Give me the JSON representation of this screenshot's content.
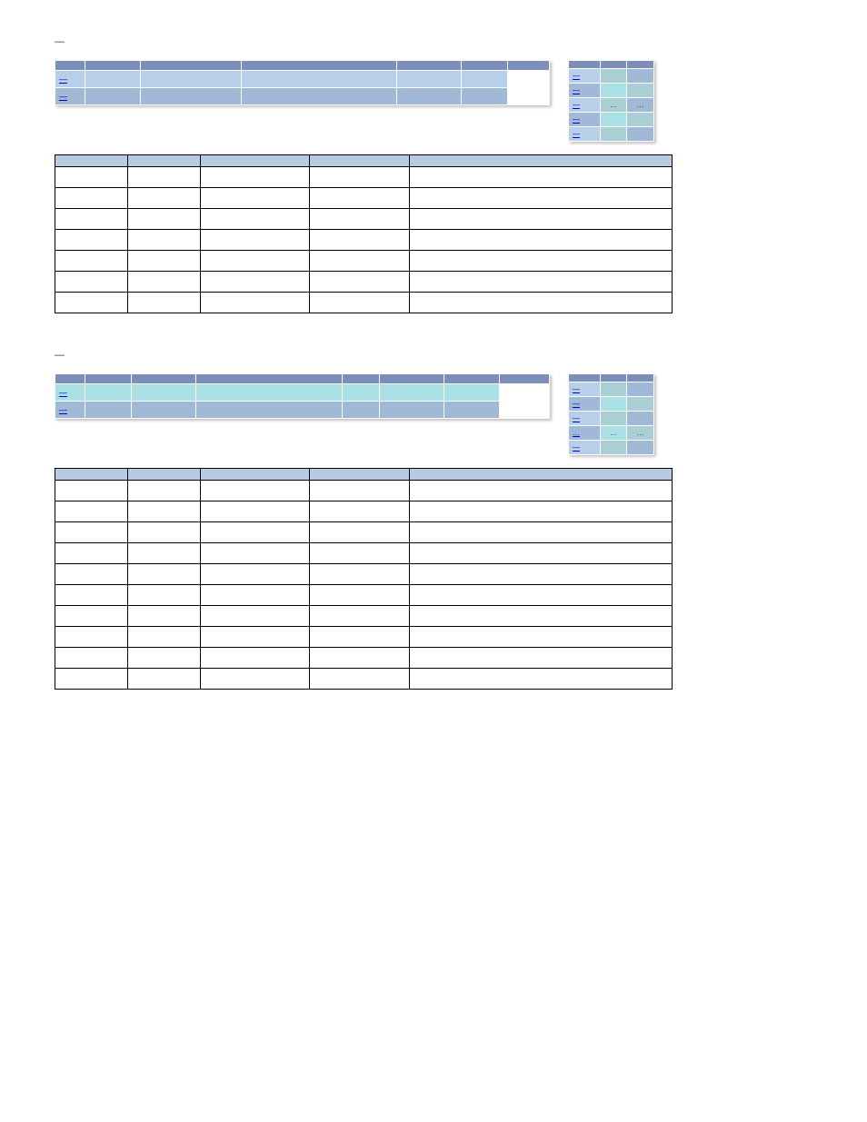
{
  "colors": {
    "header_blue": "#7b8fb9",
    "row_light_blue": "#b7cfe8",
    "row_mid_blue": "#9fb9d6",
    "row_teal": "#a9e0e5",
    "row_teal_dark": "#a9cfd4",
    "detail_header": "#b7cbe0",
    "link": "#0000cc",
    "border": "#000000",
    "shadow": "rgba(0,0,0,0.25)"
  },
  "sections": [
    {
      "title": "—",
      "summary": {
        "columns": [
          "",
          "",
          "",
          "",
          "",
          ""
        ],
        "rows": [
          {
            "cls": "row-a",
            "link": "—",
            "cells": [
              "",
              "",
              "",
              "",
              ""
            ]
          },
          {
            "cls": "row-b",
            "link": "—",
            "cells": [
              "",
              "",
              "",
              "",
              ""
            ]
          }
        ],
        "col_widths": [
          "32px",
          "60px",
          "110px",
          "170px",
          "70px",
          "50px",
          "auto"
        ]
      },
      "mini": {
        "columns": [
          "",
          "",
          ""
        ],
        "rows": [
          {
            "cls": "c1",
            "link": "—",
            "cells": [
              "",
              ""
            ]
          },
          {
            "cls": "c2",
            "link": "—",
            "cells": [
              "",
              ""
            ]
          },
          {
            "cls": "c3",
            "link": "—",
            "cells": [
              "…",
              "…"
            ]
          },
          {
            "cls": "c4",
            "link": "—",
            "cells": [
              "",
              ""
            ]
          },
          {
            "cls": "c5",
            "link": "—",
            "cells": [
              "",
              ""
            ]
          }
        ]
      },
      "detail": {
        "columns": [
          "",
          "",
          "",
          "",
          ""
        ],
        "col_widths": [
          "80px",
          "80px",
          "120px",
          "110px",
          "auto"
        ],
        "row_count": 7
      }
    },
    {
      "title": "—",
      "summary": {
        "columns": [
          "",
          "",
          "",
          "",
          "",
          "",
          ""
        ],
        "rows": [
          {
            "cls": "row-a2",
            "link": "—",
            "cells": [
              "",
              "",
              "",
              "",
              "",
              ""
            ]
          },
          {
            "cls": "row-b2",
            "link": "—",
            "cells": [
              "",
              "",
              "",
              "",
              "",
              ""
            ]
          }
        ],
        "col_widths": [
          "32px",
          "50px",
          "70px",
          "160px",
          "40px",
          "70px",
          "60px",
          "auto"
        ]
      },
      "mini": {
        "columns": [
          "",
          "",
          ""
        ],
        "rows": [
          {
            "cls": "c1",
            "link": "—",
            "cells": [
              "",
              ""
            ]
          },
          {
            "cls": "c2",
            "link": "—",
            "cells": [
              "",
              ""
            ]
          },
          {
            "cls": "c3",
            "link": "—",
            "cells": [
              "",
              ""
            ]
          },
          {
            "cls": "c4",
            "link": "…",
            "cells": [
              "…",
              "…"
            ]
          },
          {
            "cls": "c5",
            "link": "—",
            "cells": [
              "",
              ""
            ]
          }
        ]
      },
      "detail": {
        "columns": [
          "",
          "",
          "",
          "",
          ""
        ],
        "col_widths": [
          "80px",
          "80px",
          "120px",
          "110px",
          "auto"
        ],
        "row_count": 10
      }
    }
  ]
}
